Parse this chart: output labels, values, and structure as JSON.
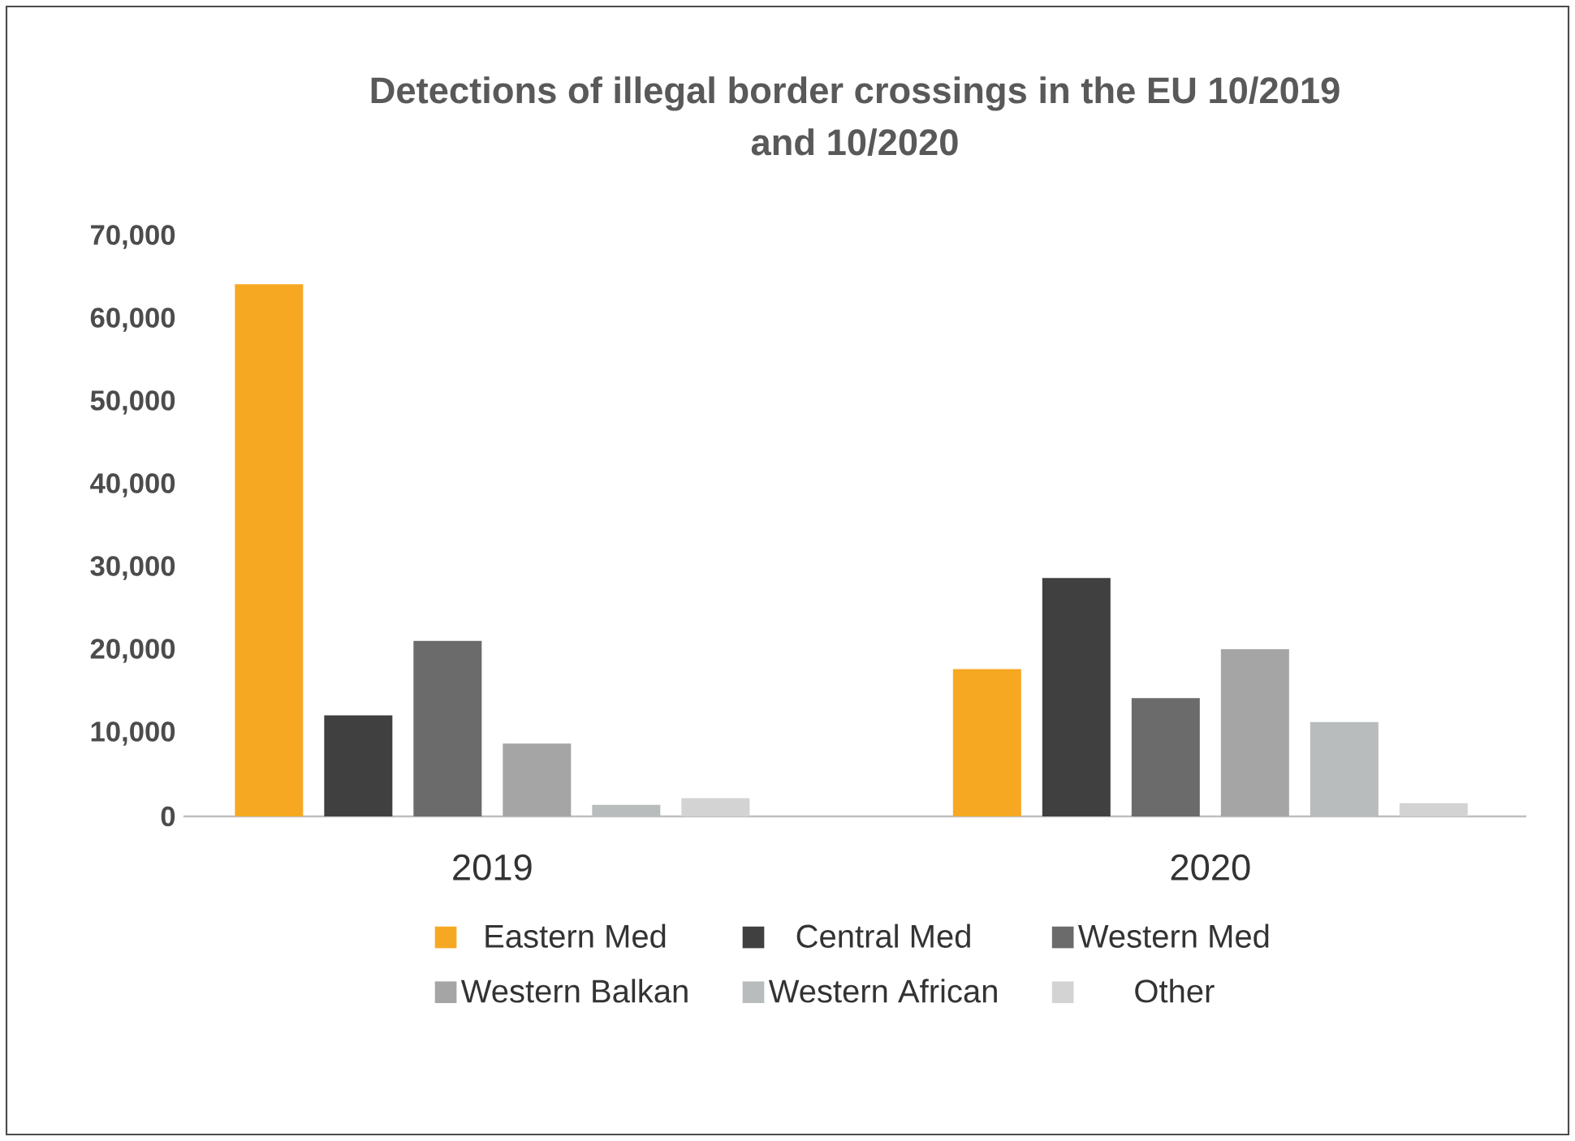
{
  "chart_data": {
    "type": "bar",
    "title": "Detections of illegal border crossings in the EU 10/2019\nand 10/2020",
    "categories": [
      "2019",
      "2020"
    ],
    "series": [
      {
        "name": "Eastern Med",
        "color": "#f7a823",
        "values": [
          64300,
          17800
        ]
      },
      {
        "name": "Central Med",
        "color": "#404040",
        "values": [
          12200,
          28800
        ]
      },
      {
        "name": "Western Med",
        "color": "#6b6b6b",
        "values": [
          21200,
          14300
        ]
      },
      {
        "name": "Western Balkan",
        "color": "#a5a5a5",
        "values": [
          8800,
          20200
        ]
      },
      {
        "name": "Western African",
        "color": "#b9bcbc",
        "values": [
          1400,
          11400
        ]
      },
      {
        "name": "Other",
        "color": "#d3d3d3",
        "values": [
          2200,
          1600
        ]
      }
    ],
    "ylim": [
      0,
      70000
    ],
    "yticks": [
      0,
      {
        "value": 10000,
        "label": "10,000"
      },
      {
        "value": 20000,
        "label": "20,000"
      },
      {
        "value": 30000,
        "label": "30,000"
      },
      {
        "value": 40000,
        "label": "40,000"
      },
      {
        "value": 50000,
        "label": "50,000"
      },
      {
        "value": 60000,
        "label": "60,000"
      },
      {
        "value": 70000,
        "label": "70,000"
      }
    ],
    "legend": "bottom"
  }
}
